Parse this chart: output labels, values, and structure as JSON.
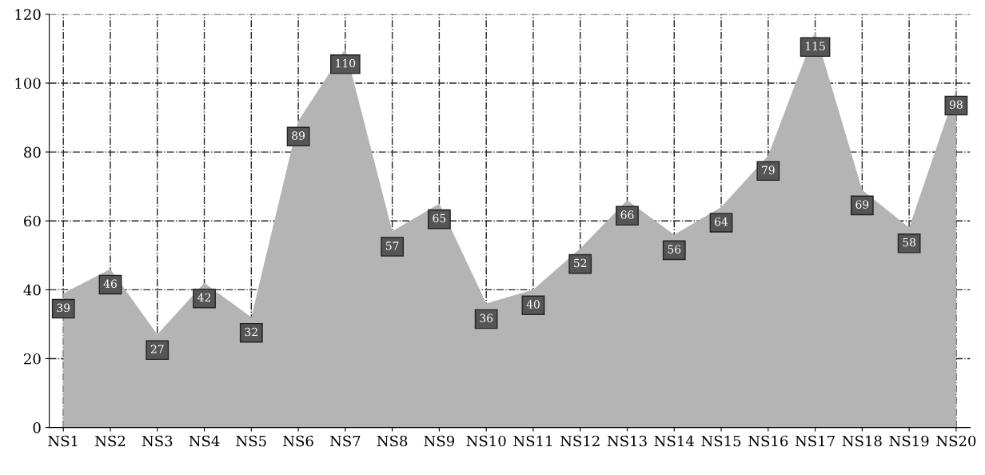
{
  "chart_data": {
    "type": "area",
    "categories": [
      "NS1",
      "NS2",
      "NS3",
      "NS4",
      "NS5",
      "NS6",
      "NS7",
      "NS8",
      "NS9",
      "NS10",
      "NS11",
      "NS12",
      "NS13",
      "NS14",
      "NS15",
      "NS16",
      "NS17",
      "NS18",
      "NS19",
      "NS20"
    ],
    "values": [
      39,
      46,
      27,
      42,
      32,
      89,
      110,
      57,
      65,
      36,
      40,
      52,
      66,
      56,
      64,
      79,
      115,
      69,
      58,
      98
    ],
    "color": "#b4b4b4",
    "ylim": [
      0,
      120
    ],
    "yticks": [
      0,
      20,
      40,
      60,
      80,
      100,
      120
    ],
    "grid": true,
    "line_style": "dashed",
    "data_labels": true
  }
}
